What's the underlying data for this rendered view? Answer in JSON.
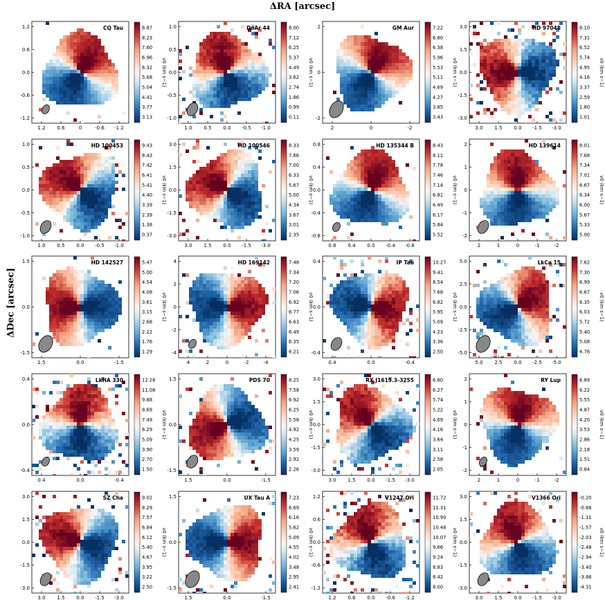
{
  "figure": {
    "xlabel": "ΔRA [arcsec]",
    "ylabel": "ΔDec [arcsec]",
    "colorbar_label": "v0 (km s−1)"
  },
  "chart_data": [
    {
      "type": "heatmap",
      "title": "CQ Tau",
      "xticks": [
        "1.2",
        "0.6",
        "0",
        "-0.6",
        "-1.2"
      ],
      "yticks": [
        "1.2",
        "0.6",
        "0.0",
        "-0.6",
        "-1.2"
      ],
      "cbar_ticks": [
        "8.87",
        "8.23",
        "7.60",
        "6.96",
        "6.32",
        "5.68",
        "5.04",
        "4.41",
        "3.77",
        "3.13"
      ],
      "pa": 300,
      "noise": 0.1,
      "beam": true
    },
    {
      "type": "heatmap",
      "title": "DoAr 44",
      "xticks": [
        "1.0",
        "0.5",
        "0.0",
        "-0.5",
        "-1.0"
      ],
      "yticks": [
        "1.0",
        "0.5",
        "0.0",
        "-0.5",
        "-1.0"
      ],
      "cbar_ticks": [
        "8.00",
        "7.12",
        "6.25",
        "5.37",
        "4.49",
        "3.62",
        "2.74",
        "1.86",
        "0.99",
        "0.11"
      ],
      "pa": 250,
      "noise": 0.6,
      "beam": true
    },
    {
      "type": "heatmap",
      "title": "GM Aur",
      "xticks": [
        "2",
        "0",
        "-2"
      ],
      "yticks": [
        "2",
        "0",
        "-2"
      ],
      "cbar_ticks": [
        "7.22",
        "6.80",
        "6.38",
        "5.96",
        "5.53",
        "5.11",
        "4.69",
        "4.27",
        "3.85",
        "3.43"
      ],
      "pa": 300,
      "noise": 0.1,
      "beam": true
    },
    {
      "type": "heatmap",
      "title": "HD 97048",
      "xticks": [
        "3.0",
        "1.5",
        "0.0",
        "-1.5",
        "-3.0"
      ],
      "yticks": [
        "3.0",
        "1.5",
        "0.0",
        "-1.5",
        "-3.0"
      ],
      "cbar_ticks": [
        "8.10",
        "7.31",
        "6.52",
        "5.74",
        "4.95",
        "4.16",
        "3.37",
        "2.59",
        "1.80",
        "1.01"
      ],
      "pa": 180,
      "noise": 0.9,
      "beam": false
    },
    {
      "type": "heatmap",
      "title": "HD 100453",
      "xticks": [
        "1.0",
        "0.5",
        "0.0",
        "-0.5",
        "-1.0"
      ],
      "yticks": [
        "1.0",
        "0.5",
        "0.0",
        "-0.5",
        "-1.0"
      ],
      "cbar_ticks": [
        "9.43",
        "8.43",
        "7.42",
        "6.41",
        "5.41",
        "4.40",
        "3.39",
        "2.39",
        "1.38",
        "0.37"
      ],
      "pa": 220,
      "noise": 0.4,
      "beam": true
    },
    {
      "type": "heatmap",
      "title": "HD 100546",
      "xticks": [
        "3.0",
        "1.5",
        "0.0",
        "-1.5",
        "-3.0"
      ],
      "yticks": [
        "3.0",
        "1.5",
        "0.0",
        "-1.5",
        "-3.0"
      ],
      "cbar_ticks": [
        "8.33",
        "7.66",
        "7.00",
        "6.33",
        "5.67",
        "5.00",
        "4.34",
        "3.67",
        "3.01",
        "2.35"
      ],
      "pa": 210,
      "noise": 0.5,
      "beam": false
    },
    {
      "type": "heatmap",
      "title": "HD 135344 B",
      "xticks": [
        "0.8",
        "0.4",
        "0.0",
        "-0.4",
        "-0.8"
      ],
      "yticks": [
        "0.8",
        "0.4",
        "0.0",
        "-0.4",
        "-0.8"
      ],
      "cbar_ticks": [
        "8.43",
        "8.11",
        "7.78",
        "7.46",
        "7.14",
        "6.81",
        "6.49",
        "6.17",
        "5.84",
        "5.52"
      ],
      "pa": 290,
      "noise": 0.1,
      "beam": true
    },
    {
      "type": "heatmap",
      "title": "HD 139614",
      "xticks": [
        "2",
        "1",
        "0",
        "-1",
        "-2"
      ],
      "yticks": [
        "2",
        "1",
        "0",
        "-1",
        "-2"
      ],
      "cbar_ticks": [
        "8.01",
        "7.68",
        "7.34",
        "7.01",
        "6.67",
        "6.34",
        "6.00",
        "5.67",
        "5.33",
        "5.00"
      ],
      "pa": 270,
      "noise": 0.2,
      "beam": true
    },
    {
      "type": "heatmap",
      "title": "HD 142527",
      "xticks": [
        "1.5",
        "0.0",
        "-1.5"
      ],
      "yticks": [
        "1.5",
        "0.0",
        "-1.5"
      ],
      "cbar_ticks": [
        "5.47",
        "5.00",
        "4.54",
        "4.08",
        "3.61",
        "3.15",
        "2.68",
        "2.22",
        "1.76",
        "1.29"
      ],
      "pa": 180,
      "noise": 0.1,
      "beam": true
    },
    {
      "type": "heatmap",
      "title": "HD 169142",
      "xticks": [
        "4",
        "2",
        "0",
        "-2",
        "-4"
      ],
      "yticks": [
        "4",
        "2",
        "0",
        "-2",
        "-4"
      ],
      "cbar_ticks": [
        "7.48",
        "7.34",
        "7.20",
        "7.06",
        "6.92",
        "6.77",
        "6.63",
        "6.49",
        "6.35",
        "6.21"
      ],
      "pa": 0,
      "noise": 0.4,
      "beam": true
    },
    {
      "type": "heatmap",
      "title": "IP Tau",
      "xticks": [
        "0.4",
        "0.0",
        "-0.4"
      ],
      "yticks": [
        "0.4",
        "0.0",
        "-0.4"
      ],
      "cbar_ticks": [
        "10.27",
        "9.41",
        "8.54",
        "7.68",
        "6.82",
        "5.95",
        "5.09",
        "4.23",
        "3.36",
        "2.50"
      ],
      "pa": 10,
      "noise": 0.6,
      "beam": true
    },
    {
      "type": "heatmap",
      "title": "LkCa 15",
      "xticks": [
        "5.0",
        "2.5",
        "0.0",
        "-2.5",
        "-5.0"
      ],
      "yticks": [
        "5.0",
        "2.5",
        "0.0",
        "-2.5",
        "-5.0"
      ],
      "cbar_ticks": [
        "7.62",
        "7.30",
        "6.99",
        "6.67",
        "6.35",
        "6.03",
        "5.72",
        "5.40",
        "5.08",
        "4.76"
      ],
      "pa": 330,
      "noise": 0.5,
      "beam": true
    },
    {
      "type": "heatmap",
      "title": "LkHA 330",
      "xticks": [
        "0.4",
        "0.0",
        "-0.4"
      ],
      "yticks": [
        "0.4",
        "0.0",
        "-0.4"
      ],
      "cbar_ticks": [
        "12.28",
        "11.08",
        "9.88",
        "8.69",
        "7.49",
        "6.29",
        "5.09",
        "3.90",
        "2.70",
        "1.50"
      ],
      "pa": 270,
      "noise": 0.9,
      "beam": true
    },
    {
      "type": "heatmap",
      "title": "PDS 70",
      "xticks": [
        "1.5",
        "0.0",
        "-1.5"
      ],
      "yticks": [
        "1.5",
        "0.0",
        "-1.5"
      ],
      "cbar_ticks": [
        "8.25",
        "7.58",
        "6.92",
        "6.25",
        "5.58",
        "4.92",
        "4.25",
        "3.59",
        "2.92",
        "2.26"
      ],
      "pa": 160,
      "noise": 0.3,
      "beam": true
    },
    {
      "type": "heatmap",
      "title": "RX J1615.3-3255",
      "xticks": [
        "3.0",
        "1.5",
        "0.0",
        "-1.5",
        "-3.0"
      ],
      "yticks": [
        "3.0",
        "1.5",
        "0.0",
        "-1.5",
        "-3.0"
      ],
      "cbar_ticks": [
        "6.80",
        "6.27",
        "5.74",
        "5.22",
        "4.69",
        "4.16",
        "3.64",
        "3.11",
        "2.58",
        "2.05"
      ],
      "pa": 230,
      "noise": 0.7,
      "beam": false
    },
    {
      "type": "heatmap",
      "title": "RY Lup",
      "xticks": [
        "2",
        "1",
        "0",
        "-1",
        "-2"
      ],
      "yticks": [
        "2",
        "1",
        "0",
        "-1",
        "-2"
      ],
      "cbar_ticks": [
        "6.89",
        "6.22",
        "5.55",
        "4.87",
        "4.20",
        "3.53",
        "2.86",
        "2.18",
        "1.51",
        "0.84"
      ],
      "pa": 280,
      "noise": 0.2,
      "beam": true
    },
    {
      "type": "heatmap",
      "title": "SZ Cha",
      "xticks": [
        "3.0",
        "1.5",
        "0.0",
        "-1.5",
        "-3.0"
      ],
      "yticks": [
        "3.0",
        "1.5",
        "0.0",
        "-1.5",
        "-3.0"
      ],
      "cbar_ticks": [
        "9.02",
        "8.29",
        "7.57",
        "6.84",
        "6.12",
        "5.40",
        "4.67",
        "3.95",
        "3.22",
        "2.50"
      ],
      "pa": 200,
      "noise": 0.4,
      "beam": true
    },
    {
      "type": "heatmap",
      "title": "UX Tau A",
      "xticks": [
        "1.5",
        "0.0",
        "-1.5"
      ],
      "yticks": [
        "1.5",
        "0.0",
        "-1.5"
      ],
      "cbar_ticks": [
        "7.23",
        "6.69",
        "6.16",
        "5.62",
        "5.09",
        "4.55",
        "4.02",
        "3.48",
        "2.95",
        "2.41"
      ],
      "pa": 0,
      "noise": 0.3,
      "beam": true
    },
    {
      "type": "heatmap",
      "title": "V1247 Ori",
      "xticks": [
        "1.2",
        "0.6",
        "0.0",
        "-0.6",
        "-1.2"
      ],
      "yticks": [
        "1.2",
        "0.6",
        "0.0",
        "-0.6",
        "-1.2"
      ],
      "cbar_ticks": [
        "11.72",
        "11.31",
        "10.90",
        "10.48",
        "10.07",
        "9.66",
        "9.24",
        "8.83",
        "8.42",
        "8.00"
      ],
      "pa": 250,
      "noise": 0.8,
      "beam": false
    },
    {
      "type": "heatmap",
      "title": "V1366 Ori",
      "xticks": [
        "3.0",
        "1.5",
        "0.0",
        "-1.5",
        "-3.0"
      ],
      "yticks": [
        "3.0",
        "1.5",
        "0.0",
        "-1.5",
        "-3.0"
      ],
      "cbar_ticks": [
        "-0.20",
        "-0.66",
        "-1.11",
        "-1.57",
        "-2.03",
        "-2.48",
        "-2.94",
        "-3.40",
        "-3.86",
        "-4.31"
      ],
      "pa": 250,
      "noise": 0.4,
      "beam": true
    }
  ]
}
